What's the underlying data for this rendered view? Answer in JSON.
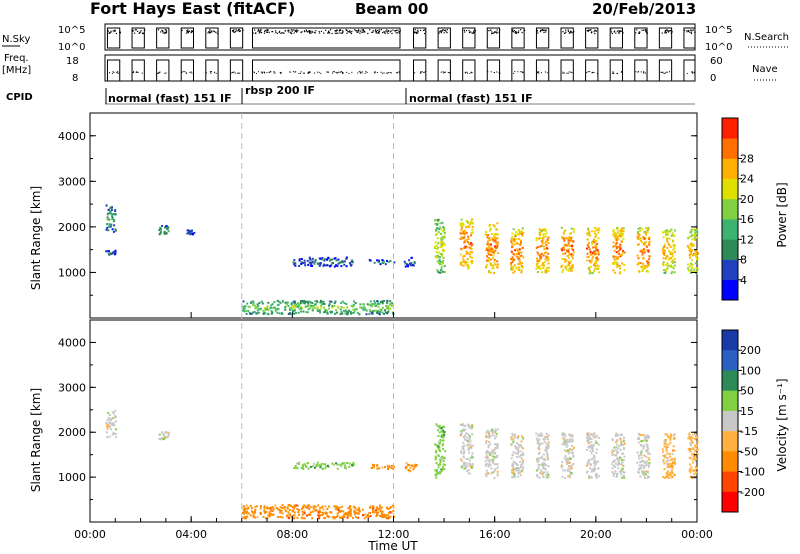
{
  "header": {
    "station": "Fort Hays East (fitACF)",
    "beam": "Beam 00",
    "date": "20/Feb/2013"
  },
  "top_panels": {
    "nsky_label": "N.Sky",
    "nsky_ticks": [
      "10^5",
      "10^0"
    ],
    "nsky_right_ticks": [
      "10^5",
      "10^0"
    ],
    "nsearch_label": "N.Search",
    "freq_label_line1": "Freq.",
    "freq_label_line2": "[MHz]",
    "freq_ticks": [
      "18",
      "8"
    ],
    "nave_label": "Nave",
    "nave_ticks": [
      "60",
      "0"
    ],
    "cpid_label": "CPID",
    "cpid_segments": [
      {
        "label": "normal (fast) 151 IF",
        "start_hour": 1.0
      },
      {
        "label": "rbsp 200 IF",
        "start_hour": 6.0
      },
      {
        "label": "normal (fast) 151 IF",
        "start_hour": 12.3
      }
    ]
  },
  "chart_data": [
    {
      "type": "heatmap",
      "panel": "power",
      "ylabel": "Slant Range [km]",
      "ylim": [
        0,
        4500
      ],
      "yticks": [
        "1000",
        "2000",
        "3000",
        "4000"
      ],
      "xlim": [
        0,
        24
      ],
      "colorbar": {
        "label": "Power [dB]",
        "ticks": [
          "4",
          "8",
          "12",
          "16",
          "20",
          "24",
          "28"
        ],
        "colors": [
          "#0000ff",
          "#2040c0",
          "#2e8b57",
          "#3cb371",
          "#7fd142",
          "#e0e000",
          "#ffb000",
          "#ff7000",
          "#ff2000"
        ]
      },
      "echo_regions": [
        {
          "t0": 0.6,
          "t1": 1.0,
          "r0": 1900,
          "r1": 2500,
          "level": 2
        },
        {
          "t0": 0.6,
          "t1": 1.0,
          "r0": 1400,
          "r1": 1500,
          "level": 1
        },
        {
          "t0": 2.7,
          "t1": 3.1,
          "r0": 1850,
          "r1": 2050,
          "level": 2
        },
        {
          "t0": 3.8,
          "t1": 4.1,
          "r0": 1850,
          "r1": 1950,
          "level": 1
        },
        {
          "t0": 6.0,
          "t1": 12.0,
          "r0": 100,
          "r1": 400,
          "level": 3
        },
        {
          "t0": 8.0,
          "t1": 10.4,
          "r0": 1150,
          "r1": 1350,
          "level": 1
        },
        {
          "t0": 11.0,
          "t1": 12.0,
          "r0": 1200,
          "r1": 1300,
          "level": 1
        },
        {
          "t0": 12.4,
          "t1": 12.9,
          "r0": 1150,
          "r1": 1350,
          "level": 1
        },
        {
          "t0": 13.6,
          "t1": 14.0,
          "r0": 1000,
          "r1": 2200,
          "level": 4
        },
        {
          "t0": 14.6,
          "t1": 15.1,
          "r0": 1100,
          "r1": 2200,
          "level": 6
        },
        {
          "t0": 15.6,
          "t1": 16.1,
          "r0": 1000,
          "r1": 2100,
          "level": 6
        },
        {
          "t0": 16.6,
          "t1": 17.1,
          "r0": 1000,
          "r1": 2000,
          "level": 6
        },
        {
          "t0": 17.6,
          "t1": 18.1,
          "r0": 1000,
          "r1": 2000,
          "level": 6
        },
        {
          "t0": 18.6,
          "t1": 19.1,
          "r0": 1000,
          "r1": 2000,
          "level": 6
        },
        {
          "t0": 19.6,
          "t1": 20.1,
          "r0": 1000,
          "r1": 2000,
          "level": 6
        },
        {
          "t0": 20.6,
          "t1": 21.1,
          "r0": 1000,
          "r1": 2000,
          "level": 6
        },
        {
          "t0": 21.6,
          "t1": 22.1,
          "r0": 1000,
          "r1": 2000,
          "level": 6
        },
        {
          "t0": 22.6,
          "t1": 23.1,
          "r0": 1000,
          "r1": 2000,
          "level": 5
        },
        {
          "t0": 23.6,
          "t1": 24.0,
          "r0": 1000,
          "r1": 2000,
          "level": 5
        }
      ]
    },
    {
      "type": "heatmap",
      "panel": "velocity",
      "ylabel": "Slant Range [km]",
      "xlabel": "Time UT",
      "ylim": [
        0,
        4500
      ],
      "yticks": [
        "1000",
        "2000",
        "3000",
        "4000"
      ],
      "xlim": [
        0,
        24
      ],
      "xticks": [
        "00:00",
        "04:00",
        "08:00",
        "12:00",
        "16:00",
        "20:00",
        "00:00"
      ],
      "colorbar": {
        "label": "Velocity [m s⁻¹]",
        "ticks": [
          "200",
          "100",
          "50",
          "15",
          "-15",
          "-50",
          "-100",
          "-200"
        ],
        "colors": [
          "#1a3aa8",
          "#2a60c0",
          "#2e8b57",
          "#7fd142",
          "#c8c8c8",
          "#ffb040",
          "#ff8c00",
          "#ff4500",
          "#ff0000"
        ]
      },
      "echo_regions": [
        {
          "t0": 0.6,
          "t1": 1.0,
          "r0": 1900,
          "r1": 2500,
          "color": 4
        },
        {
          "t0": 2.7,
          "t1": 3.1,
          "r0": 1850,
          "r1": 2050,
          "color": 4
        },
        {
          "t0": 6.0,
          "t1": 12.0,
          "r0": 100,
          "r1": 400,
          "color": 6
        },
        {
          "t0": 8.0,
          "t1": 10.4,
          "r0": 1200,
          "r1": 1350,
          "color": 3
        },
        {
          "t0": 11.0,
          "t1": 12.0,
          "r0": 1200,
          "r1": 1300,
          "color": 6
        },
        {
          "t0": 12.4,
          "t1": 12.9,
          "r0": 1150,
          "r1": 1350,
          "color": 6
        },
        {
          "t0": 13.6,
          "t1": 14.0,
          "r0": 1000,
          "r1": 2200,
          "color": 3
        },
        {
          "t0": 14.6,
          "t1": 15.1,
          "r0": 1100,
          "r1": 2200,
          "color": 4
        },
        {
          "t0": 15.6,
          "t1": 16.1,
          "r0": 1000,
          "r1": 2100,
          "color": 4
        },
        {
          "t0": 16.6,
          "t1": 17.1,
          "r0": 1000,
          "r1": 2000,
          "color": 4
        },
        {
          "t0": 17.6,
          "t1": 18.1,
          "r0": 1000,
          "r1": 2000,
          "color": 4
        },
        {
          "t0": 18.6,
          "t1": 19.1,
          "r0": 1000,
          "r1": 2000,
          "color": 4
        },
        {
          "t0": 19.6,
          "t1": 20.1,
          "r0": 1000,
          "r1": 2000,
          "color": 4
        },
        {
          "t0": 20.6,
          "t1": 21.1,
          "r0": 1000,
          "r1": 2000,
          "color": 4
        },
        {
          "t0": 21.6,
          "t1": 22.1,
          "r0": 1000,
          "r1": 2000,
          "color": 4
        },
        {
          "t0": 22.6,
          "t1": 23.1,
          "r0": 1000,
          "r1": 2000,
          "color": 5
        },
        {
          "t0": 23.6,
          "t1": 24.0,
          "r0": 1000,
          "r1": 2000,
          "color": 5
        }
      ]
    }
  ]
}
